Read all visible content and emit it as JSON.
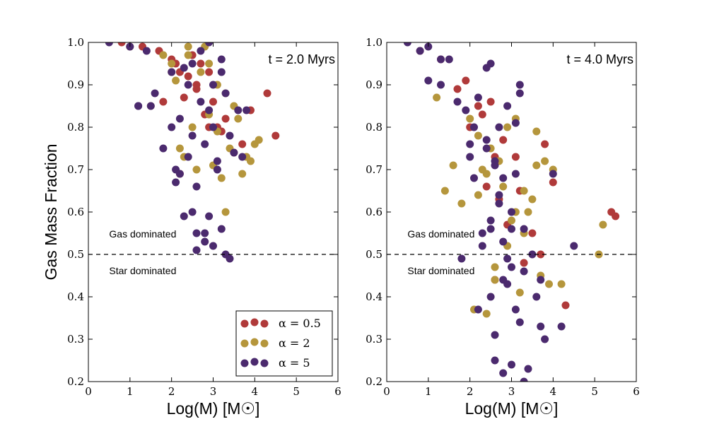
{
  "figure": {
    "ylabel": "Gas Mass Fraction",
    "xlabel": "Log(M) [M☉]",
    "series_colors": {
      "alpha_0_5": "#b03a3a",
      "alpha_2": "#b5963c",
      "alpha_5": "#4b2a6e"
    }
  },
  "chart_data": [
    {
      "type": "scatter",
      "title": "t = 2.0 Myrs",
      "xlabel": "Log(M) [M☉]",
      "ylabel": "Gas Mass Fraction",
      "xlim": [
        0,
        6
      ],
      "ylim": [
        0.2,
        1.0
      ],
      "xticks": [
        "0",
        "1",
        "2",
        "3",
        "4",
        "5",
        "6"
      ],
      "yticks": [
        "0.2",
        "0.3",
        "0.4",
        "0.5",
        "0.6",
        "0.7",
        "0.8",
        "0.9",
        "1.0"
      ],
      "hline": 0.5,
      "annotations": [
        "Gas dominated",
        "Star dominated"
      ],
      "legend": [
        "α = 0.5",
        "α = 2",
        "α = 5"
      ],
      "series": [
        {
          "name": "α = 0.5",
          "x": [
            0.8,
            1.3,
            1.7,
            2.0,
            2.1,
            2.2,
            2.3,
            2.4,
            2.5,
            2.6,
            2.7,
            2.8,
            2.9,
            3.0,
            3.1,
            3.3,
            3.5,
            3.7,
            3.9,
            4.3,
            4.5,
            2.6,
            1.8,
            2.2,
            2.9,
            3.2
          ],
          "y": [
            1.0,
            0.99,
            0.98,
            0.96,
            0.95,
            0.93,
            0.87,
            0.92,
            0.97,
            0.89,
            0.95,
            0.83,
            0.93,
            0.86,
            0.8,
            0.82,
            0.74,
            0.76,
            0.84,
            0.88,
            0.78,
            0.9,
            0.86,
            0.69,
            0.8,
            0.79
          ]
        },
        {
          "name": "α = 2",
          "x": [
            1.0,
            1.5,
            1.8,
            2.0,
            2.1,
            2.2,
            2.3,
            2.4,
            2.5,
            2.6,
            2.7,
            2.8,
            2.9,
            3.0,
            3.1,
            3.2,
            3.3,
            3.4,
            3.5,
            3.6,
            3.7,
            3.8,
            3.9,
            4.0,
            4.1,
            2.9,
            3.1,
            3.3,
            2.4,
            2.0
          ],
          "y": [
            0.99,
            0.85,
            0.97,
            0.95,
            0.91,
            0.75,
            0.73,
            0.97,
            0.8,
            0.7,
            0.93,
            0.99,
            0.83,
            0.71,
            0.79,
            0.68,
            0.6,
            0.75,
            0.85,
            0.82,
            0.69,
            0.73,
            0.72,
            0.76,
            0.77,
            0.95,
            0.9,
            0.88,
            0.99,
            0.93
          ]
        },
        {
          "name": "α = 5",
          "x": [
            0.5,
            1.0,
            1.2,
            1.4,
            1.6,
            1.8,
            2.0,
            2.1,
            2.2,
            2.3,
            2.4,
            2.5,
            2.6,
            2.7,
            2.8,
            2.9,
            3.0,
            3.1,
            3.2,
            3.3,
            3.4,
            3.5,
            3.6,
            3.7,
            3.8,
            2.5,
            2.6,
            2.8,
            2.9,
            3.0,
            3.2,
            3.3,
            3.4,
            2.1,
            2.2,
            2.3,
            2.6,
            2.4,
            2.8,
            3.0,
            3.1,
            2.7,
            2.9,
            3.2,
            2.5,
            1.2,
            1.5,
            2.0
          ],
          "y": [
            1.0,
            0.99,
            0.85,
            0.98,
            0.88,
            0.75,
            0.8,
            0.7,
            0.82,
            0.94,
            0.9,
            0.78,
            0.66,
            0.86,
            0.76,
            0.84,
            0.8,
            0.72,
            0.93,
            0.88,
            0.78,
            0.74,
            0.84,
            0.73,
            0.84,
            0.6,
            0.55,
            0.55,
            0.59,
            0.52,
            0.56,
            0.5,
            0.49,
            0.67,
            0.69,
            0.59,
            0.51,
            0.73,
            0.53,
            0.9,
            0.7,
            0.98,
            1.0,
            0.96,
            0.95,
            0.85,
            0.85,
            0.93
          ]
        }
      ]
    },
    {
      "type": "scatter",
      "title": "t = 4.0 Myrs",
      "xlabel": "Log(M) [M☉]",
      "ylabel": "",
      "xlim": [
        0,
        6
      ],
      "ylim": [
        0.2,
        1.0
      ],
      "xticks": [
        "0",
        "1",
        "2",
        "3",
        "4",
        "5",
        "6"
      ],
      "yticks": [
        "0.2",
        "0.3",
        "0.4",
        "0.5",
        "0.6",
        "0.7",
        "0.8",
        "0.9",
        "1.0"
      ],
      "hline": 0.5,
      "annotations": [
        "Gas dominated",
        "Star dominated"
      ],
      "legend": [],
      "series": [
        {
          "name": "α = 0.5",
          "x": [
            0.8,
            1.3,
            1.7,
            2.0,
            2.2,
            2.4,
            2.5,
            2.6,
            2.7,
            2.9,
            3.1,
            3.3,
            3.5,
            3.7,
            3.8,
            4.0,
            4.3,
            5.4,
            5.5,
            2.3,
            2.8,
            3.2,
            1.9,
            2.6
          ],
          "y": [
            0.98,
            0.96,
            0.89,
            0.8,
            0.85,
            0.66,
            0.86,
            0.73,
            0.63,
            0.57,
            0.73,
            0.48,
            0.55,
            0.5,
            0.76,
            0.67,
            0.38,
            0.6,
            0.59,
            0.83,
            0.77,
            0.65,
            0.91,
            0.44
          ]
        },
        {
          "name": "α = 2",
          "x": [
            1.2,
            1.4,
            1.6,
            1.8,
            2.0,
            2.2,
            2.3,
            2.4,
            2.5,
            2.6,
            2.7,
            2.8,
            2.9,
            3.0,
            3.1,
            3.2,
            3.3,
            3.4,
            3.5,
            3.6,
            3.7,
            3.8,
            3.9,
            4.0,
            4.2,
            5.1,
            5.2,
            2.1,
            2.4,
            2.6,
            2.9,
            3.3,
            3.1,
            2.2,
            3.6
          ],
          "y": [
            0.87,
            0.65,
            0.71,
            0.62,
            0.82,
            0.78,
            0.7,
            0.69,
            0.75,
            0.47,
            0.72,
            0.66,
            0.52,
            0.58,
            0.6,
            0.41,
            0.65,
            0.6,
            0.63,
            0.71,
            0.45,
            0.72,
            0.43,
            0.7,
            0.43,
            0.5,
            0.57,
            0.37,
            0.36,
            0.44,
            0.8,
            0.55,
            0.82,
            0.64,
            0.79
          ]
        },
        {
          "name": "α = 5",
          "x": [
            0.5,
            0.8,
            1.0,
            1.3,
            1.5,
            1.7,
            1.8,
            1.9,
            2.0,
            2.1,
            2.2,
            2.3,
            2.4,
            2.5,
            2.6,
            2.7,
            2.8,
            2.9,
            3.0,
            3.1,
            3.2,
            3.3,
            3.4,
            3.5,
            3.6,
            3.7,
            3.8,
            4.0,
            4.2,
            4.5,
            2.0,
            2.2,
            2.4,
            2.6,
            2.8,
            3.0,
            3.2,
            2.5,
            2.7,
            2.9,
            3.1,
            3.3,
            2.6,
            2.8,
            3.0,
            3.2,
            3.3,
            2.5,
            2.7,
            2.9,
            3.1,
            2.4,
            2.6,
            2.8,
            3.0,
            1.0,
            1.3,
            2.1,
            2.5,
            3.7,
            2.3
          ],
          "y": [
            1.0,
            0.98,
            0.91,
            0.9,
            0.96,
            0.86,
            0.49,
            0.84,
            0.73,
            0.8,
            0.37,
            0.55,
            0.75,
            0.4,
            0.31,
            0.62,
            0.68,
            0.43,
            0.56,
            0.69,
            0.34,
            0.46,
            0.23,
            0.5,
            0.4,
            0.33,
            0.3,
            0.69,
            0.33,
            0.52,
            0.76,
            0.87,
            0.77,
            0.25,
            0.22,
            0.24,
            0.9,
            0.56,
            0.64,
            0.49,
            0.81,
            0.2,
            0.71,
            0.53,
            0.47,
            0.88,
            0.56,
            0.58,
            0.8,
            0.85,
            0.37,
            0.94,
            0.72,
            0.44,
            0.6,
            0.99,
            0.96,
            0.68,
            0.95,
            0.44,
            0.52
          ]
        }
      ]
    }
  ]
}
